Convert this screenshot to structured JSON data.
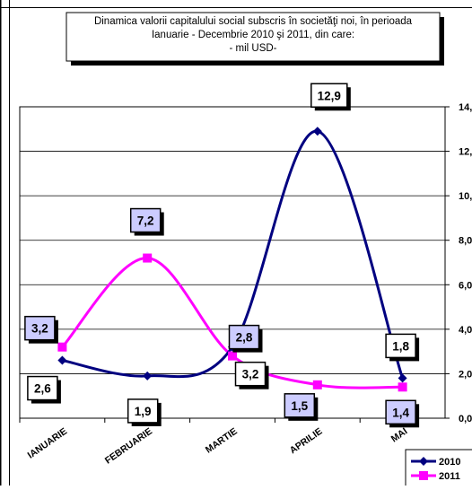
{
  "chart_data": {
    "type": "line",
    "title_lines": [
      "Dinamica  valorii capitalului social subscris în societăţi noi,  în perioada",
      "Ianuarie - Decembrie 2010 şi 2011, din care:",
      "- mil  USD-"
    ],
    "categories": [
      "IANUARIE",
      "FEBRUARIE",
      "MARTIE",
      "APRILIE",
      "MAI"
    ],
    "series": [
      {
        "name": "2010",
        "values": [
          2.6,
          1.9,
          3.2,
          12.9,
          1.8
        ],
        "labels": [
          "2,6",
          "1,9",
          "3,2",
          "12,9",
          "1,8"
        ],
        "color": "#000080",
        "marker": "diamond"
      },
      {
        "name": "2011",
        "values": [
          3.2,
          7.2,
          2.8,
          1.5,
          1.4
        ],
        "labels": [
          "3,2",
          "7,2",
          "2,8",
          "1,5",
          "1,4"
        ],
        "color": "#ff00ff",
        "marker": "square"
      }
    ],
    "y_ticks": [
      "0,0",
      "2,0",
      "4,0",
      "6,0",
      "8,0",
      "10,",
      "12,",
      "14,"
    ],
    "ylim": [
      0,
      14
    ],
    "y_axis_side": "right",
    "grid": true,
    "legend_position": "bottom-right",
    "label_box_colors": {
      "2010": "#ffffff",
      "2011": "#ccccff"
    }
  }
}
